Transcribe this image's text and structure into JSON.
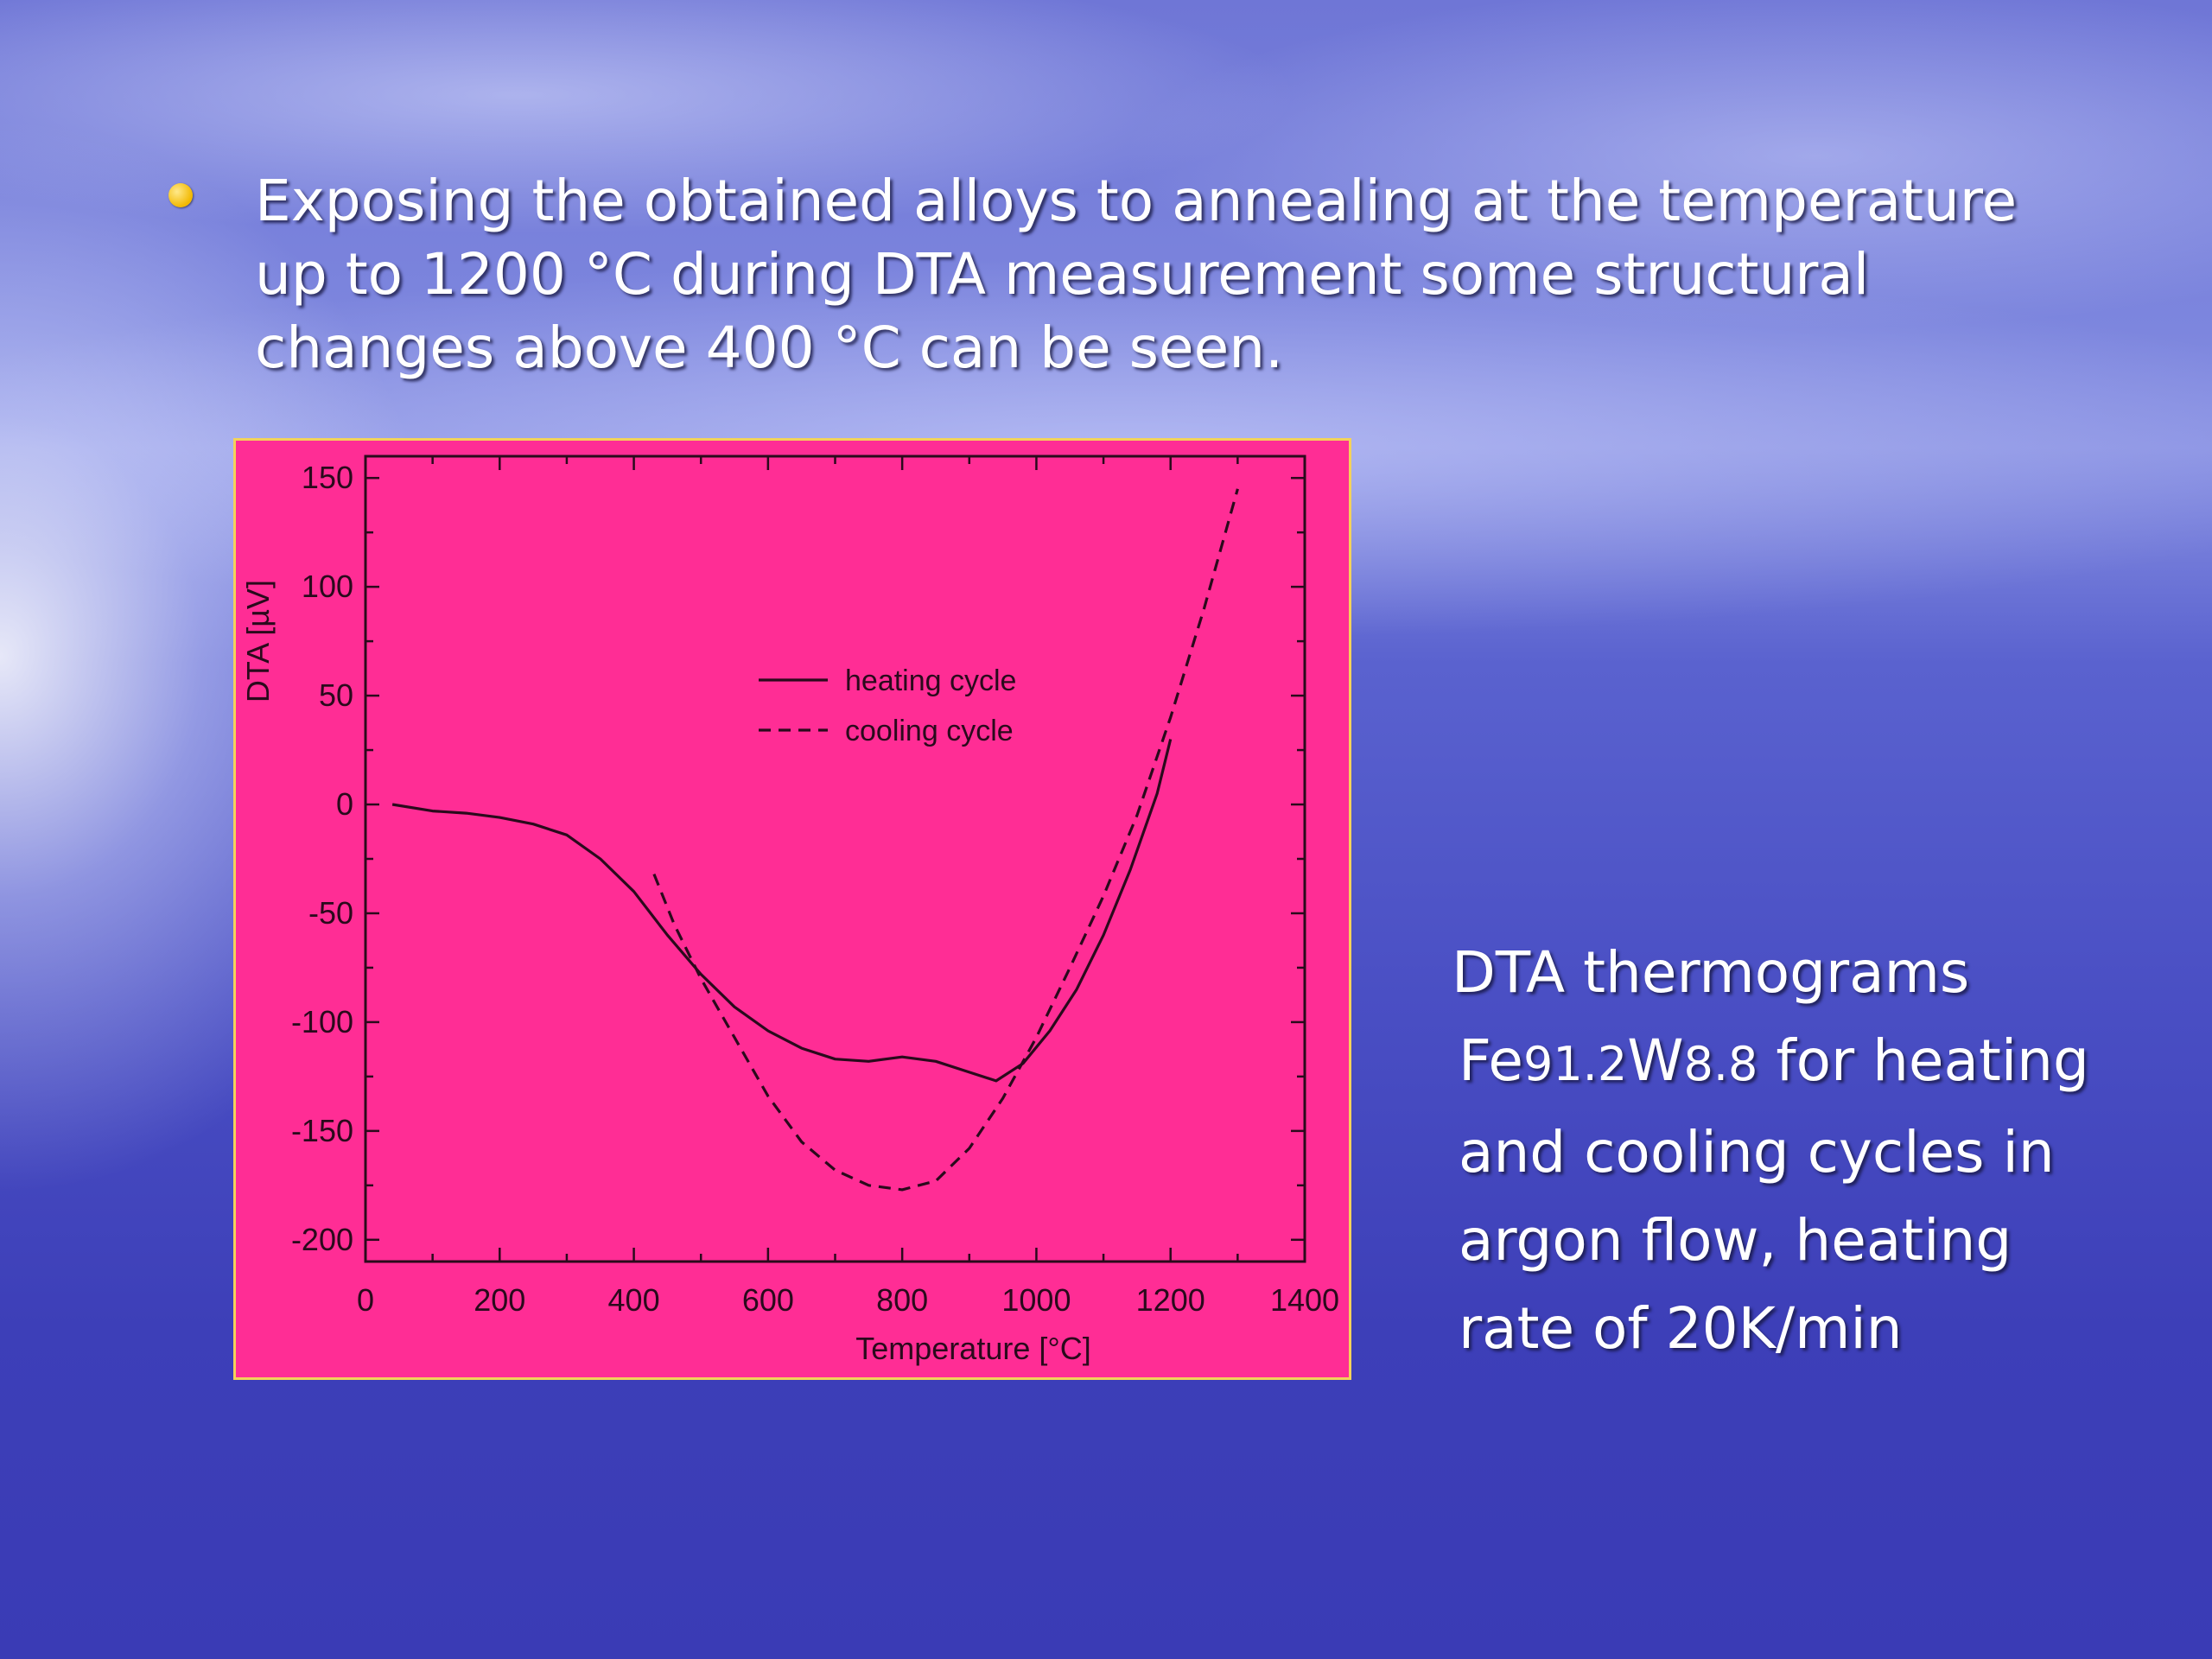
{
  "slide": {
    "bullet_text": "Exposing the obtained alloys to annealing at the temperature up to 1200 °C during DTA measurement some structural changes above 400 °C can be seen.",
    "caption": {
      "line1": "DTA thermograms",
      "formula_fe": "Fe",
      "formula_fe_sub": "91.2",
      "formula_w": "W",
      "formula_w_sub": "8.8",
      "line2_rest": " for heating",
      "line3": "and cooling cycles in",
      "line4": "argon flow, heating",
      "line5": "rate of 20K/min"
    }
  },
  "colors": {
    "chart_background": "#ff2d95",
    "chart_border": "#f3d25a",
    "bullet": "#f2b800",
    "text": "#ffffff"
  },
  "chart_data": {
    "type": "line",
    "title": "",
    "xlabel": "Temperature [°C]",
    "ylabel": "DTA [µV]",
    "xlim": [
      0,
      1400
    ],
    "ylim": [
      -210,
      160
    ],
    "xticks": [
      0,
      200,
      400,
      600,
      800,
      1000,
      1200,
      1400
    ],
    "yticks": [
      -200,
      -150,
      -100,
      -50,
      0,
      50,
      100,
      150
    ],
    "grid": false,
    "legend": "center",
    "series": [
      {
        "name": "heating cycle",
        "style": "solid",
        "x": [
          40,
          100,
          150,
          200,
          250,
          300,
          350,
          400,
          450,
          500,
          550,
          600,
          650,
          700,
          750,
          800,
          850,
          900,
          940,
          980,
          1020,
          1060,
          1100,
          1140,
          1180,
          1200
        ],
        "y": [
          0,
          -3,
          -4,
          -6,
          -9,
          -14,
          -25,
          -40,
          -60,
          -78,
          -93,
          -104,
          -112,
          -117,
          -118,
          -116,
          -118,
          -123,
          -127,
          -119,
          -104,
          -85,
          -60,
          -30,
          5,
          30
        ]
      },
      {
        "name": "cooling cycle",
        "style": "dashed",
        "x": [
          430,
          460,
          500,
          550,
          600,
          650,
          700,
          750,
          800,
          850,
          900,
          950,
          1000,
          1050,
          1100,
          1150,
          1200,
          1250,
          1300
        ],
        "y": [
          -32,
          -55,
          -80,
          -107,
          -134,
          -155,
          -168,
          -175,
          -177,
          -173,
          -158,
          -135,
          -107,
          -75,
          -42,
          -5,
          40,
          90,
          145
        ]
      }
    ]
  }
}
